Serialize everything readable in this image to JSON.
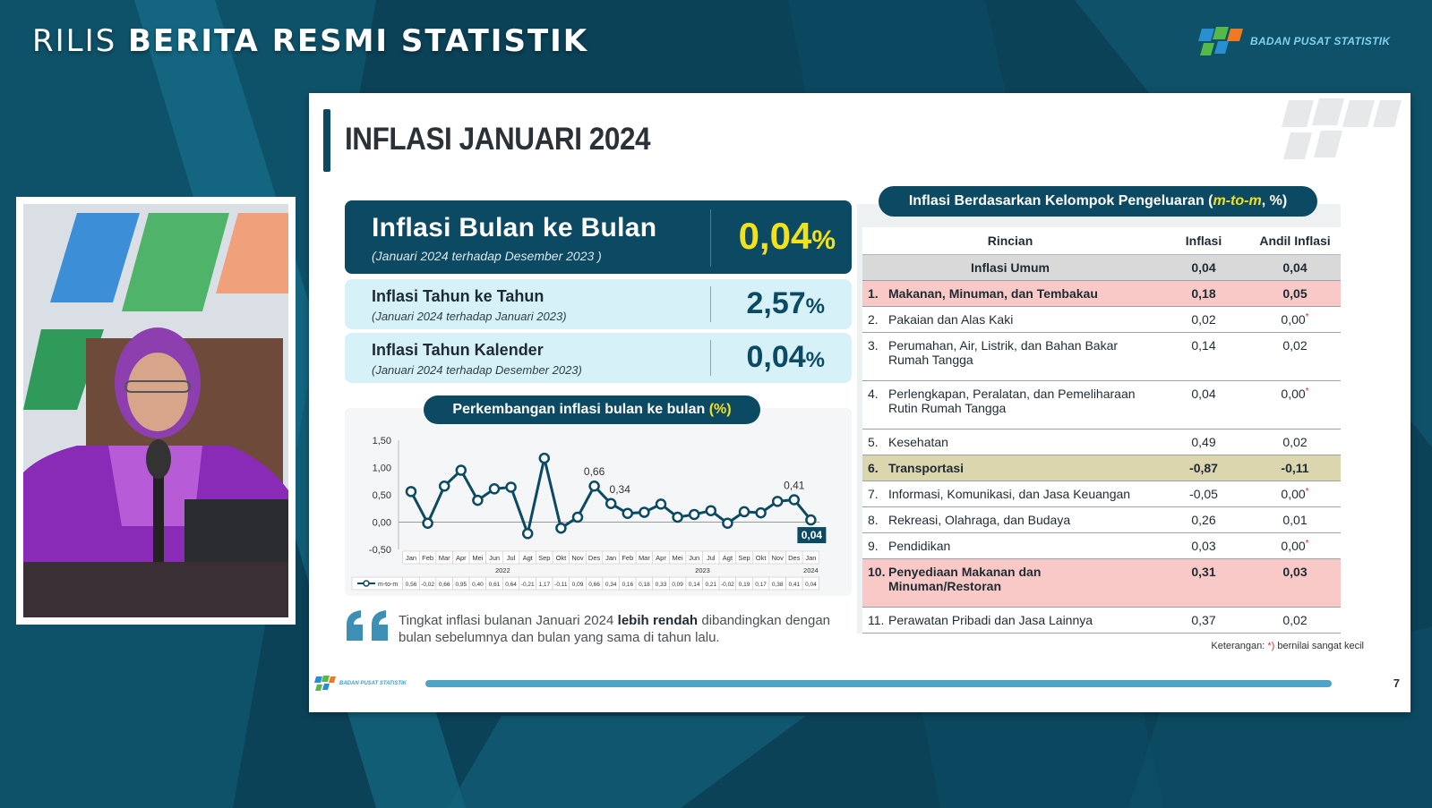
{
  "broadcast": {
    "title_light": "RILIS",
    "title_bold": "BERITA RESMI STATISTIK",
    "org_name": "BADAN PUSAT STATISTIK"
  },
  "slide": {
    "title": "INFLASI JANUARI 2024",
    "footer_org": "BADAN PUSAT STATISTIK",
    "page_number": "7"
  },
  "kpis": {
    "mtm": {
      "label": "Inflasi Bulan ke Bulan",
      "sub": "(Januari 2024 terhadap Desember 2023 )",
      "value": "0,04",
      "unit": "%"
    },
    "yoy": {
      "label": "Inflasi Tahun ke Tahun",
      "sub": "(Januari 2024 terhadap Januari 2023)",
      "value": "2,57",
      "unit": "%"
    },
    "ytd": {
      "label": "Inflasi Tahun Kalender",
      "sub": "(Januari 2024 terhadap Desember 2023)",
      "value": "0,04",
      "unit": "%"
    }
  },
  "chart_pill": {
    "text": "Perkembangan inflasi bulan ke bulan",
    "unit": "(%)"
  },
  "chart_data": {
    "type": "line",
    "categories": [
      "Jan",
      "Feb",
      "Mar",
      "Apr",
      "Mei",
      "Jun",
      "Jul",
      "Agt",
      "Sep",
      "Okt",
      "Nov",
      "Des",
      "Jan",
      "Feb",
      "Mar",
      "Apr",
      "Mei",
      "Jun",
      "Jul",
      "Agt",
      "Sep",
      "Okt",
      "Nov",
      "Des",
      "Jan"
    ],
    "year_labels": [
      "2022",
      "2023",
      "2024"
    ],
    "series": [
      {
        "name": "m-to-m",
        "values": [
          0.56,
          -0.02,
          0.66,
          0.95,
          0.4,
          0.61,
          0.64,
          -0.21,
          1.17,
          -0.11,
          0.09,
          0.66,
          0.34,
          0.16,
          0.18,
          0.33,
          0.09,
          0.14,
          0.21,
          -0.02,
          0.19,
          0.17,
          0.38,
          0.41,
          0.04
        ],
        "labels": [
          "0,56",
          "-0,02",
          "0,66",
          "0,95",
          "0,40",
          "0,61",
          "0,64",
          "-0,21",
          "1,17",
          "-0,11",
          "0,09",
          "0,66",
          "0,34",
          "0,16",
          "0,18",
          "0,33",
          "0,09",
          "0,14",
          "0,21",
          "-0,02",
          "0,19",
          "0,17",
          "0,38",
          "0,41",
          "0,04"
        ]
      }
    ],
    "callouts": [
      {
        "index": 11,
        "text": "0,66"
      },
      {
        "index": 12,
        "text": "0,34"
      },
      {
        "index": 23,
        "text": "0,41"
      },
      {
        "index": 24,
        "text": "0,04"
      }
    ],
    "y_ticks": [
      "1,50",
      "1,00",
      "0,50",
      "0,00",
      "-0,50"
    ],
    "y_tick_values": [
      1.5,
      1.0,
      0.5,
      0.0,
      -0.5
    ],
    "ylim": [
      -0.5,
      1.5
    ],
    "line_color": "#0c4a63"
  },
  "quote": {
    "before": "Tingkat inflasi bulanan Januari 2024",
    "bold": "lebih rendah",
    "after": "dibandingkan dengan bulan sebelumnya dan bulan yang sama di tahun lalu."
  },
  "table": {
    "pill_before": "Inflasi Berdasarkan Kelompok Pengeluaran (",
    "pill_highlight": "m-to-m",
    "pill_after": ", %)",
    "headers": [
      "Rincian",
      "Inflasi",
      "Andil Inflasi"
    ],
    "rows": [
      {
        "no": "",
        "name": "Inflasi Umum",
        "inflasi": "0,04",
        "andil": "0,04",
        "star": false,
        "style": "header"
      },
      {
        "no": "1.",
        "name": "Makanan, Minuman, dan Tembakau",
        "inflasi": "0,18",
        "andil": "0,05",
        "star": false,
        "style": "pink"
      },
      {
        "no": "2.",
        "name": "Pakaian dan Alas Kaki",
        "inflasi": "0,02",
        "andil": "0,00",
        "star": true,
        "style": ""
      },
      {
        "no": "3.",
        "name": "Perumahan, Air, Listrik, dan Bahan Bakar Rumah Tangga",
        "inflasi": "0,14",
        "andil": "0,02",
        "star": false,
        "style": "",
        "tall": true
      },
      {
        "no": "4.",
        "name": "Perlengkapan, Peralatan, dan Pemeliharaan Rutin Rumah Tangga",
        "inflasi": "0,04",
        "andil": "0,00",
        "star": true,
        "style": "",
        "tall": true
      },
      {
        "no": "5.",
        "name": "Kesehatan",
        "inflasi": "0,49",
        "andil": "0,02",
        "star": false,
        "style": ""
      },
      {
        "no": "6.",
        "name": "Transportasi",
        "inflasi": "-0,87",
        "andil": "-0,11",
        "star": false,
        "style": "tan"
      },
      {
        "no": "7.",
        "name": "Informasi, Komunikasi, dan Jasa Keuangan",
        "inflasi": "-0,05",
        "andil": "0,00",
        "star": true,
        "style": ""
      },
      {
        "no": "8.",
        "name": "Rekreasi, Olahraga, dan Budaya",
        "inflasi": "0,26",
        "andil": "0,01",
        "star": false,
        "style": ""
      },
      {
        "no": "9.",
        "name": "Pendidikan",
        "inflasi": "0,03",
        "andil": "0,00",
        "star": true,
        "style": ""
      },
      {
        "no": "10.",
        "name": "Penyediaan Makanan dan Minuman/Restoran",
        "inflasi": "0,31",
        "andil": "0,03",
        "star": false,
        "style": "pink",
        "tall": true
      },
      {
        "no": "11.",
        "name": "Perawatan Pribadi dan Jasa Lainnya",
        "inflasi": "0,37",
        "andil": "0,02",
        "star": false,
        "style": ""
      }
    ],
    "note_label": "Keterangan:",
    "note_star": "*)",
    "note_text": "bernilai sangat kecil"
  }
}
